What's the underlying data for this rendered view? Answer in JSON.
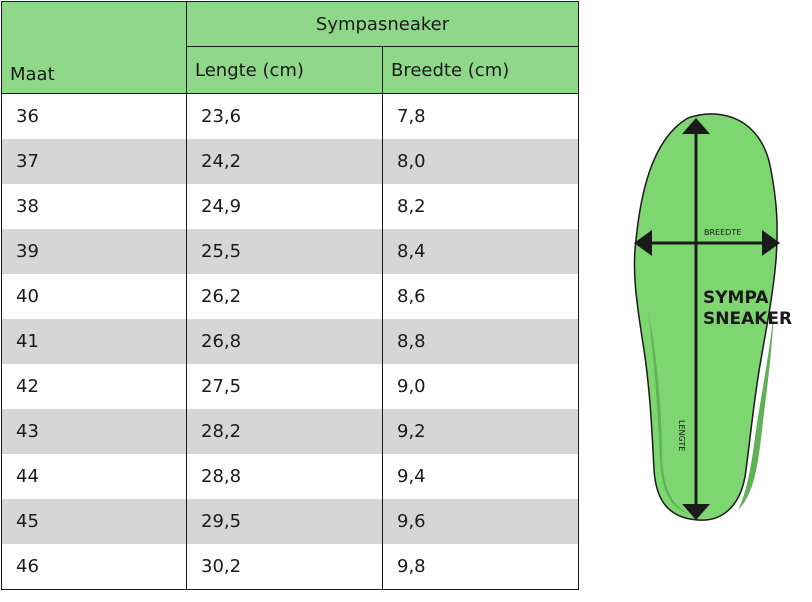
{
  "table": {
    "brand_header": "Sympasneaker",
    "columns": {
      "size": "Maat",
      "length": "Lengte (cm)",
      "width": "Breedte (cm)"
    },
    "rows": [
      {
        "size": "36",
        "length": "23,6",
        "width": "7,8"
      },
      {
        "size": "37",
        "length": "24,2",
        "width": "8,0"
      },
      {
        "size": "38",
        "length": "24,9",
        "width": "8,2"
      },
      {
        "size": "39",
        "length": "25,5",
        "width": "8,4"
      },
      {
        "size": "40",
        "length": "26,2",
        "width": "8,6"
      },
      {
        "size": "41",
        "length": "26,8",
        "width": "8,8"
      },
      {
        "size": "42",
        "length": "27,5",
        "width": "9,0"
      },
      {
        "size": "43",
        "length": "28,2",
        "width": "9,2"
      },
      {
        "size": "44",
        "length": "28,8",
        "width": "9,4"
      },
      {
        "size": "45",
        "length": "29,5",
        "width": "9,6"
      },
      {
        "size": "46",
        "length": "30,2",
        "width": "9,8"
      }
    ]
  },
  "insole": {
    "width_label": "BREEDTE",
    "length_label": "LENGTE",
    "brand_line1": "SYMPA",
    "brand_line2": "SNEAKER"
  },
  "colors": {
    "header_green": "#8fd88a",
    "insole_green": "#7ed670",
    "insole_shadow": "#5fb356",
    "row_alt": "#d6d6d6",
    "ink": "#1a1a1a"
  }
}
